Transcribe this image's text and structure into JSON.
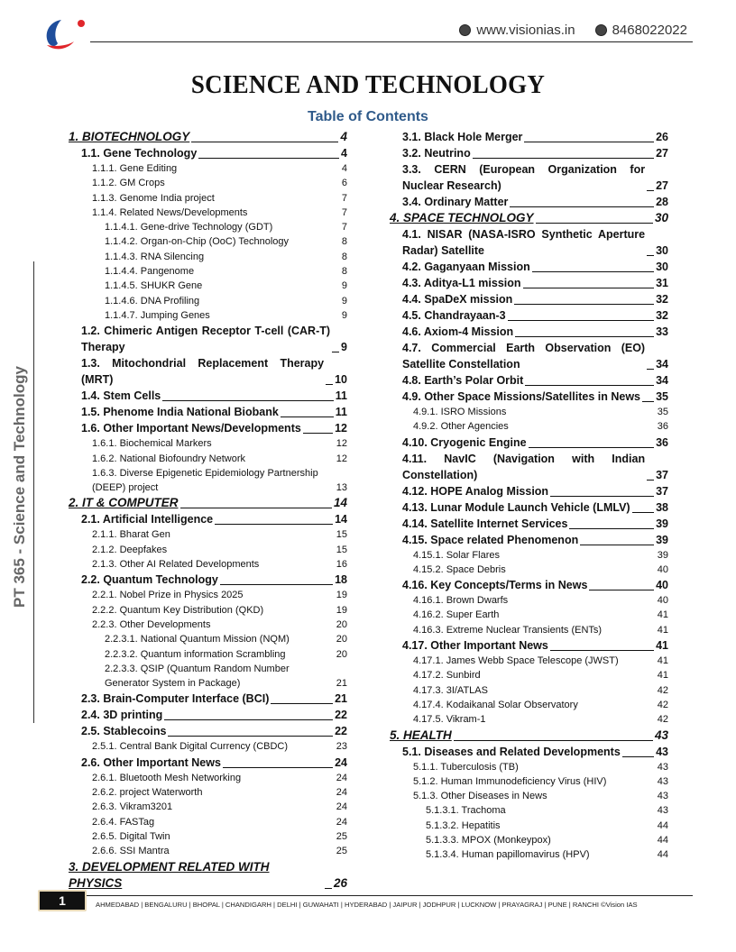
{
  "header": {
    "website": "www.visionias.in",
    "phone": "8468022022",
    "colors": {
      "logo_blue": "#1f4e9c",
      "logo_red": "#e0262b",
      "toc_title": "#2f5a8a"
    }
  },
  "title": "SCIENCE AND TECHNOLOGY",
  "toc_title": "Table of Contents",
  "side_label": "PT 365 - Science and Technology",
  "left_column": [
    {
      "level": "h1",
      "text": "1. BIOTECHNOLOGY",
      "page": "4"
    },
    {
      "level": "h2",
      "text": "1.1. Gene Technology",
      "page": "4"
    },
    {
      "level": "h3",
      "text": "1.1.1. Gene Editing",
      "page": "4"
    },
    {
      "level": "h3",
      "text": "1.1.2. GM Crops",
      "page": "6"
    },
    {
      "level": "h3",
      "text": "1.1.3. Genome India project",
      "page": "7"
    },
    {
      "level": "h3",
      "text": "1.1.4. Related News/Developments",
      "page": "7"
    },
    {
      "level": "h4",
      "text": "1.1.4.1. Gene-drive Technology (GDT)",
      "page": "7"
    },
    {
      "level": "h4",
      "text": "1.1.4.2. Organ-on-Chip (OoC) Technology",
      "page": "8"
    },
    {
      "level": "h4",
      "text": "1.1.4.3. RNA Silencing",
      "page": "8"
    },
    {
      "level": "h4",
      "text": "1.1.4.4. Pangenome",
      "page": "8"
    },
    {
      "level": "h4",
      "text": "1.1.4.5. SHUKR Gene",
      "page": "9"
    },
    {
      "level": "h4",
      "text": "1.1.4.6. DNA Profiling",
      "page": "9"
    },
    {
      "level": "h4",
      "text": "1.1.4.7. Jumping Genes",
      "page": "9"
    },
    {
      "level": "h2",
      "text": "1.2. Chimeric Antigen Receptor T-cell (CAR-T) Therapy",
      "page": "9"
    },
    {
      "level": "h2",
      "text": "1.3. Mitochondrial Replacement Therapy (MRT)",
      "page": "10"
    },
    {
      "level": "h2",
      "text": "1.4. Stem Cells",
      "page": "11"
    },
    {
      "level": "h2",
      "text": "1.5. Phenome India National Biobank",
      "page": "11"
    },
    {
      "level": "h2",
      "text": "1.6. Other Important News/Developments",
      "page": "12"
    },
    {
      "level": "h3",
      "text": "1.6.1. Biochemical Markers",
      "page": "12"
    },
    {
      "level": "h3",
      "text": "1.6.2. National Biofoundry Network",
      "page": "12"
    },
    {
      "level": "h3",
      "text": "1.6.3. Diverse Epigenetic Epidemiology Partnership (DEEP) project",
      "page": "13"
    },
    {
      "level": "h1",
      "text": "2. IT & COMPUTER",
      "page": "14"
    },
    {
      "level": "h2",
      "text": "2.1. Artificial Intelligence",
      "page": "14"
    },
    {
      "level": "h3",
      "text": "2.1.1. Bharat Gen",
      "page": "15"
    },
    {
      "level": "h3",
      "text": "2.1.2. Deepfakes",
      "page": "15"
    },
    {
      "level": "h3",
      "text": "2.1.3. Other AI Related Developments",
      "page": "16"
    },
    {
      "level": "h2",
      "text": "2.2. Quantum Technology",
      "page": "18"
    },
    {
      "level": "h3",
      "text": "2.2.1. Nobel Prize in Physics 2025",
      "page": "19"
    },
    {
      "level": "h3",
      "text": "2.2.2. Quantum Key Distribution (QKD)",
      "page": "19"
    },
    {
      "level": "h3",
      "text": "2.2.3. Other Developments",
      "page": "20"
    },
    {
      "level": "h4",
      "text": "2.2.3.1. National Quantum Mission (NQM)",
      "page": "20"
    },
    {
      "level": "h4",
      "text": "2.2.3.2. Quantum information Scrambling",
      "page": "20"
    },
    {
      "level": "h4",
      "text": "2.2.3.3. QSIP (Quantum Random Number Generator System in Package)",
      "page": "21"
    },
    {
      "level": "h2",
      "text": "2.3. Brain-Computer Interface (BCI)",
      "page": "21"
    },
    {
      "level": "h2",
      "text": "2.4. 3D printing",
      "page": "22"
    },
    {
      "level": "h2",
      "text": "2.5. Stablecoins",
      "page": "22"
    },
    {
      "level": "h3",
      "text": "2.5.1. Central Bank Digital Currency (CBDC)",
      "page": "23"
    },
    {
      "level": "h2",
      "text": "2.6. Other Important News",
      "page": "24"
    },
    {
      "level": "h3",
      "text": "2.6.1. Bluetooth Mesh Networking",
      "page": "24"
    },
    {
      "level": "h3",
      "text": "2.6.2. project Waterworth",
      "page": "24"
    },
    {
      "level": "h3",
      "text": "2.6.3. Vikram3201",
      "page": "24"
    },
    {
      "level": "h3",
      "text": "2.6.4. FASTag",
      "page": "24"
    },
    {
      "level": "h3",
      "text": "2.6.5. Digital Twin",
      "page": "25"
    },
    {
      "level": "h3",
      "text": "2.6.6. SSI Mantra",
      "page": "25"
    },
    {
      "level": "h1",
      "text": "3. DEVELOPMENT RELATED WITH PHYSICS",
      "page": "26"
    }
  ],
  "right_column": [
    {
      "level": "h2",
      "text": "3.1. Black Hole Merger",
      "page": "26"
    },
    {
      "level": "h2",
      "text": "3.2. Neutrino",
      "page": "27"
    },
    {
      "level": "h2",
      "text": "3.3. CERN (European Organization for Nuclear Research)",
      "page": "27"
    },
    {
      "level": "h2",
      "text": "3.4. Ordinary Matter",
      "page": "28"
    },
    {
      "level": "h1",
      "text": "4. SPACE TECHNOLOGY",
      "page": "30"
    },
    {
      "level": "h2",
      "text": "4.1. NISAR (NASA-ISRO Synthetic Aperture Radar) Satellite",
      "page": "30"
    },
    {
      "level": "h2",
      "text": "4.2. Gaganyaan Mission",
      "page": "30"
    },
    {
      "level": "h2",
      "text": "4.3. Aditya-L1 mission",
      "page": "31"
    },
    {
      "level": "h2",
      "text": "4.4. SpaDeX mission",
      "page": "32"
    },
    {
      "level": "h2",
      "text": "4.5. Chandrayaan-3",
      "page": "32"
    },
    {
      "level": "h2",
      "text": "4.6. Axiom-4 Mission",
      "page": "33"
    },
    {
      "level": "h2",
      "text": "4.7. Commercial Earth Observation (EO) Satellite Constellation",
      "page": "34"
    },
    {
      "level": "h2",
      "text": "4.8. Earth’s Polar Orbit",
      "page": "34"
    },
    {
      "level": "h2",
      "text": "4.9. Other Space Missions/Satellites in News",
      "page": "35"
    },
    {
      "level": "h3",
      "text": "4.9.1. ISRO Missions",
      "page": "35"
    },
    {
      "level": "h3",
      "text": "4.9.2. Other Agencies",
      "page": "36"
    },
    {
      "level": "h2",
      "text": "4.10. Cryogenic Engine",
      "page": "36"
    },
    {
      "level": "h2",
      "text": "4.11. NavIC (Navigation with Indian Constellation)",
      "page": "37"
    },
    {
      "level": "h2",
      "text": "4.12. HOPE Analog Mission",
      "page": "37"
    },
    {
      "level": "h2",
      "text": "4.13. Lunar Module Launch Vehicle (LMLV)",
      "page": "38"
    },
    {
      "level": "h2",
      "text": "4.14. Satellite Internet Services",
      "page": "39"
    },
    {
      "level": "h2",
      "text": "4.15. Space related Phenomenon",
      "page": "39"
    },
    {
      "level": "h3",
      "text": "4.15.1. Solar Flares",
      "page": "39"
    },
    {
      "level": "h3",
      "text": "4.15.2. Space Debris",
      "page": "40"
    },
    {
      "level": "h2",
      "text": "4.16. Key Concepts/Terms in News",
      "page": "40"
    },
    {
      "level": "h3",
      "text": "4.16.1. Brown Dwarfs",
      "page": "40"
    },
    {
      "level": "h3",
      "text": "4.16.2. Super Earth",
      "page": "41"
    },
    {
      "level": "h3",
      "text": "4.16.3. Extreme Nuclear Transients (ENTs)",
      "page": "41"
    },
    {
      "level": "h2",
      "text": "4.17. Other Important News",
      "page": "41"
    },
    {
      "level": "h3",
      "text": "4.17.1. James Webb Space Telescope (JWST)",
      "page": "41"
    },
    {
      "level": "h3",
      "text": "4.17.2. Sunbird",
      "page": "41"
    },
    {
      "level": "h3",
      "text": "4.17.3. 3I/ATLAS",
      "page": "42"
    },
    {
      "level": "h3",
      "text": "4.17.4. Kodaikanal Solar Observatory",
      "page": "42"
    },
    {
      "level": "h3",
      "text": "4.17.5. Vikram-1",
      "page": "42"
    },
    {
      "level": "h1",
      "text": "5. HEALTH",
      "page": "43"
    },
    {
      "level": "h2",
      "text": "5.1. Diseases and Related Developments",
      "page": "43"
    },
    {
      "level": "h3",
      "text": "5.1.1. Tuberculosis (TB)",
      "page": "43"
    },
    {
      "level": "h3",
      "text": "5.1.2. Human Immunodeficiency Virus (HIV)",
      "page": "43"
    },
    {
      "level": "h3",
      "text": "5.1.3. Other Diseases in News",
      "page": "43"
    },
    {
      "level": "h4",
      "text": "5.1.3.1. Trachoma",
      "page": "43"
    },
    {
      "level": "h4",
      "text": "5.1.3.2. Hepatitis",
      "page": "44"
    },
    {
      "level": "h4",
      "text": "5.1.3.3. MPOX (Monkeypox)",
      "page": "44"
    },
    {
      "level": "h4",
      "text": "5.1.3.4. Human papillomavirus (HPV)",
      "page": "44"
    }
  ],
  "footer": {
    "page_number": "1",
    "cities": "AHMEDABAD | BENGALURU | BHOPAL | CHANDIGARH | DELHI | GUWAHATI | HYDERABAD | JAIPUR | JODHPUR | LUCKNOW | PRAYAGRAJ | PUNE | RANCHI ©Vision IAS"
  }
}
